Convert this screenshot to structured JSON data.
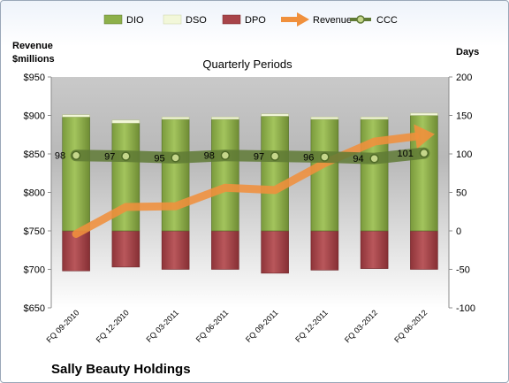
{
  "chart_data": {
    "type": "bar",
    "title": "Sally Beauty Holdings",
    "subtitle": "Quarterly Periods",
    "left_axis": {
      "label_line1": "Revenue",
      "label_line2": "$millions",
      "ylim": [
        650,
        950
      ],
      "ticks": [
        "$650",
        "$700",
        "$750",
        "$800",
        "$850",
        "$900",
        "$950"
      ]
    },
    "right_axis": {
      "label": "Days",
      "ylim": [
        -100,
        200
      ],
      "ticks": [
        "-100",
        "-50",
        "0",
        "50",
        "100",
        "150",
        "200"
      ]
    },
    "categories": [
      "FQ 09-2010",
      "FQ 12-2010",
      "FQ 03-2011",
      "FQ 06-2011",
      "FQ 09-2011",
      "FQ 12-2011",
      "FQ 03-2012",
      "FQ 06-2012"
    ],
    "series": [
      {
        "name": "DIO",
        "axis": "right",
        "kind": "stacked-bar",
        "color": "#8db04a",
        "values": [
          148,
          140,
          145,
          145,
          149,
          145,
          145,
          150
        ]
      },
      {
        "name": "DSO",
        "axis": "right",
        "kind": "stacked-bar",
        "color": "#f2f7d9",
        "values": [
          3,
          4,
          3,
          3,
          3,
          3,
          3,
          3
        ]
      },
      {
        "name": "DPO",
        "axis": "right",
        "kind": "bar-negative",
        "color": "#a84449",
        "values": [
          -52,
          -47,
          -50,
          -50,
          -55,
          -51,
          -49,
          -50
        ]
      },
      {
        "name": "Revenue",
        "axis": "left",
        "kind": "arrow-line",
        "color": "#f0903c",
        "values": [
          746,
          781,
          782,
          806,
          803,
          838,
          866,
          874
        ]
      },
      {
        "name": "CCC",
        "axis": "right",
        "kind": "line-markers",
        "color": "#5f7a35",
        "values": [
          98,
          97,
          95,
          98,
          97,
          96,
          94,
          101
        ]
      }
    ],
    "ccc_labels": [
      "98",
      "97",
      "95",
      "98",
      "97",
      "96",
      "94",
      "101"
    ],
    "legend_position": "top",
    "grid": false
  }
}
